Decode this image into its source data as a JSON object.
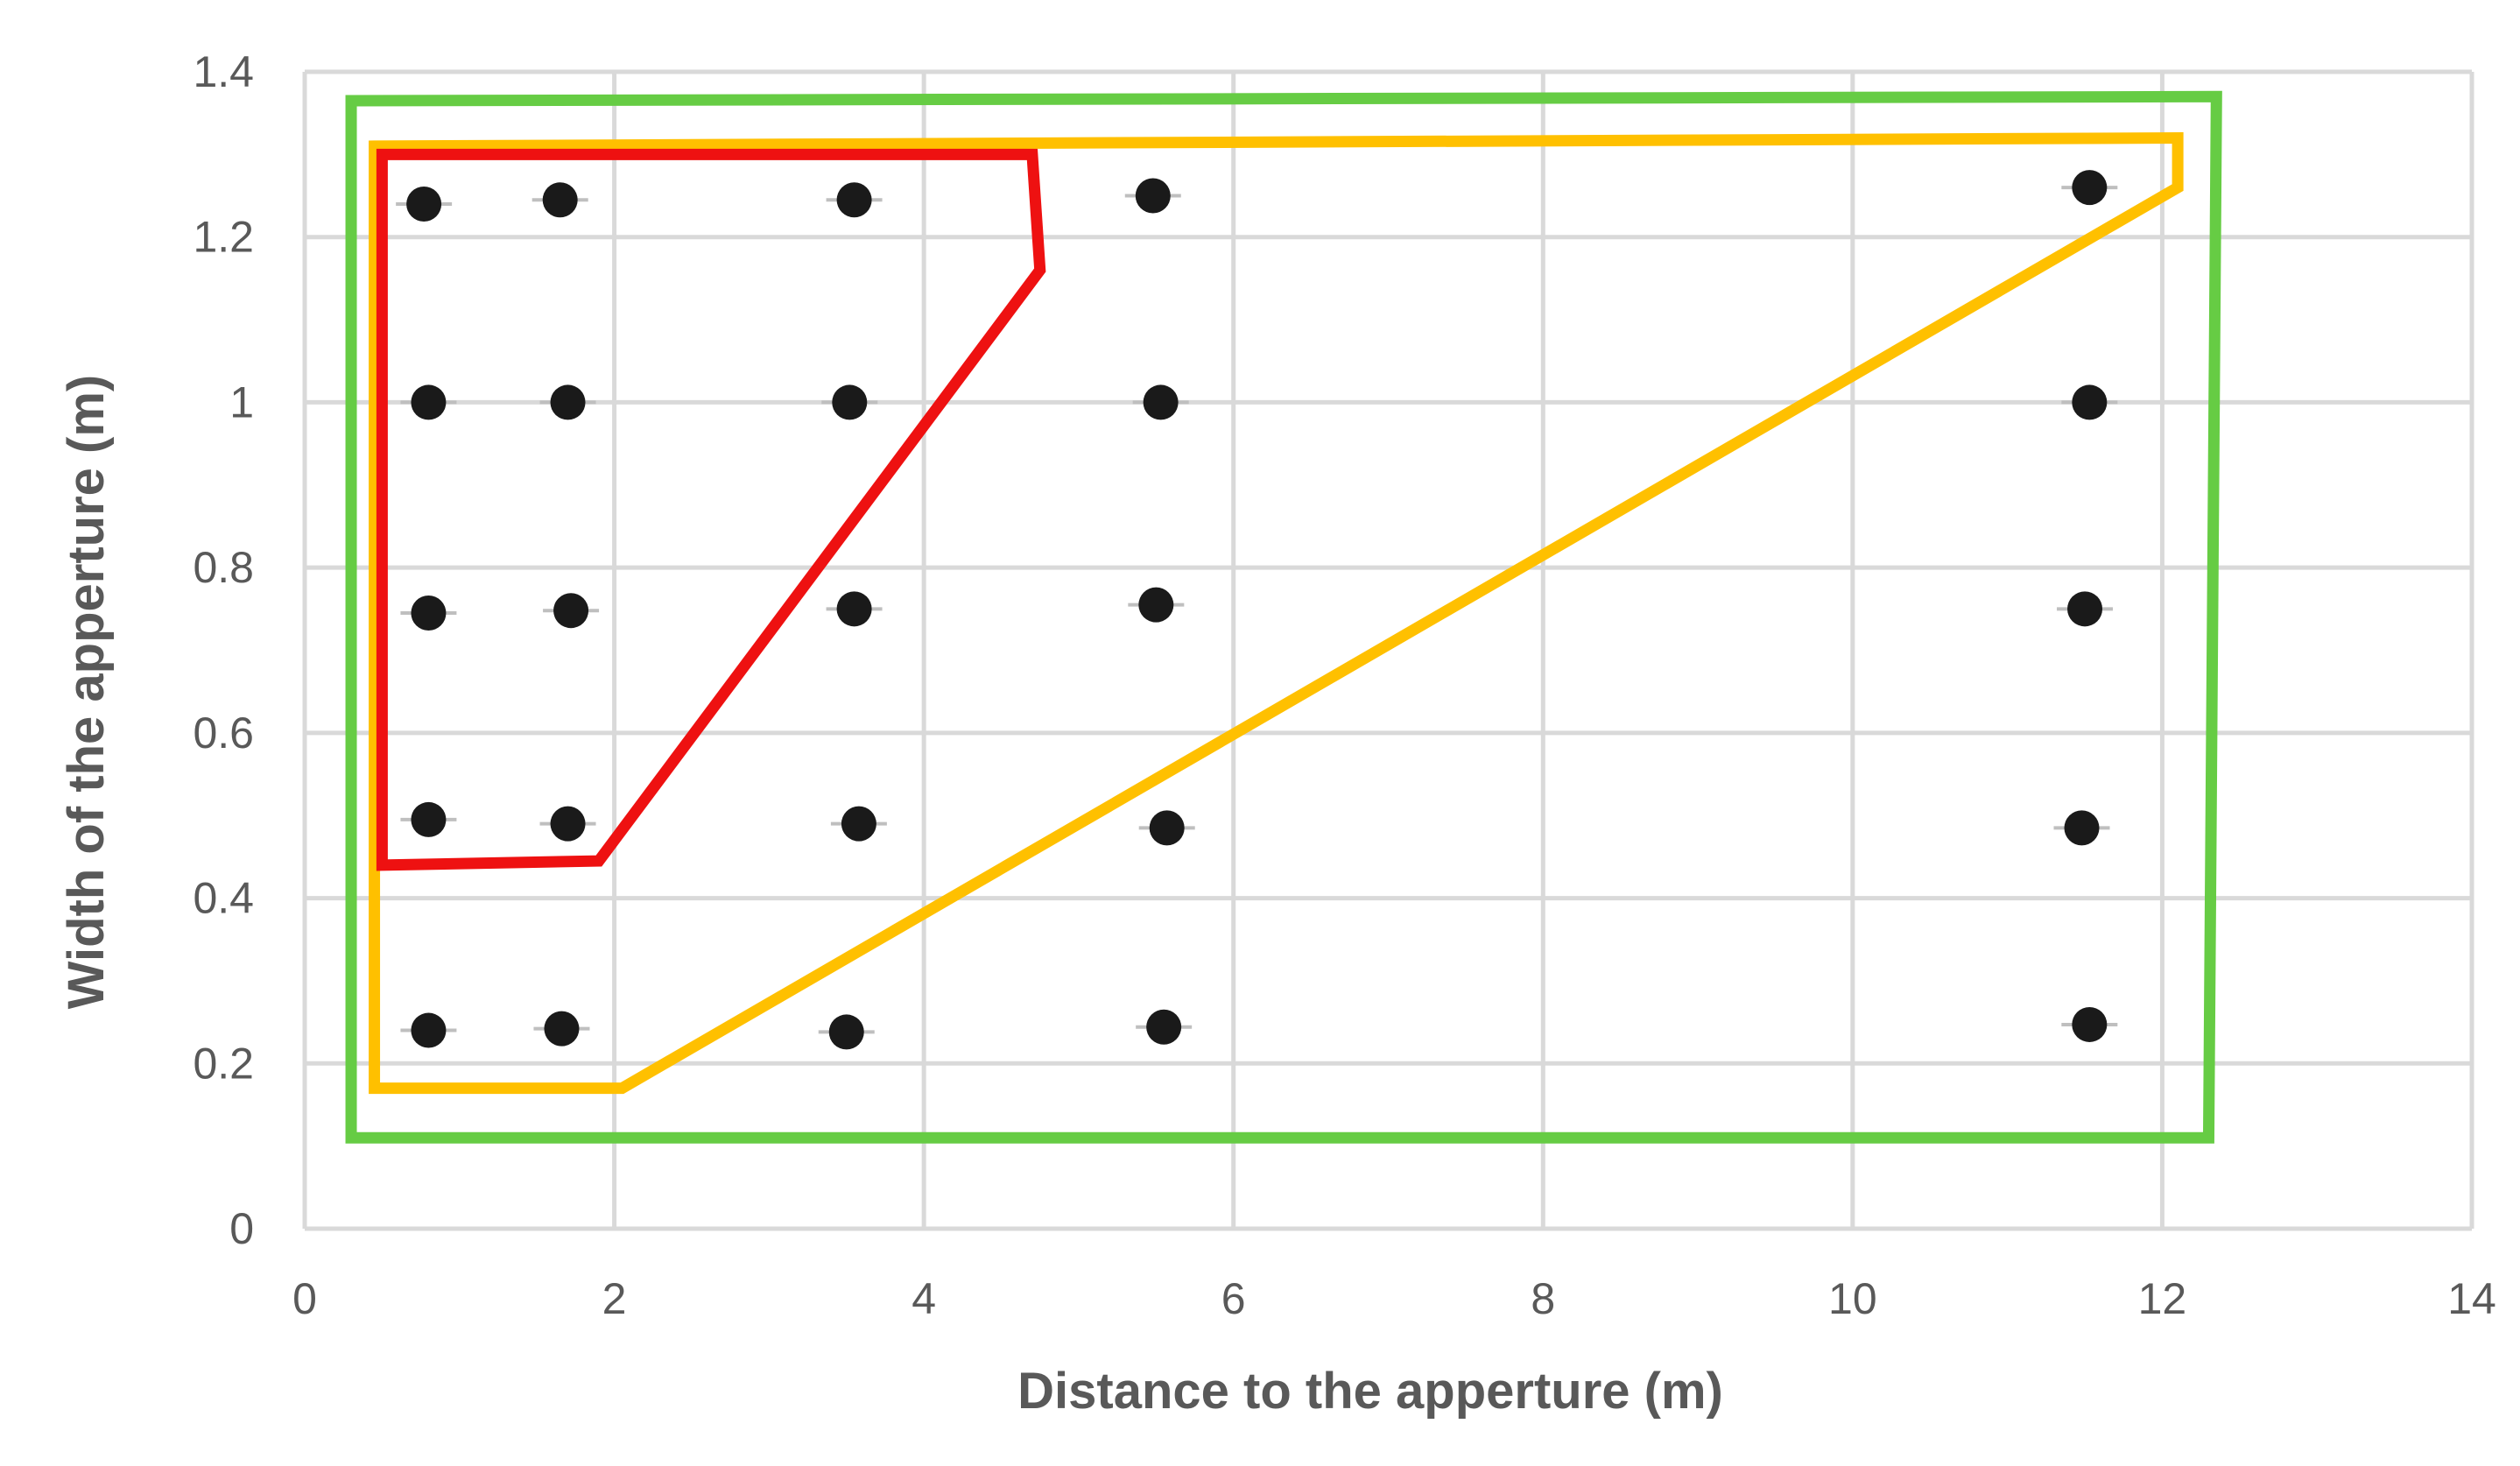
{
  "chart_data": {
    "type": "scatter",
    "title": "",
    "xlabel": "Distance to the apperture (m)",
    "ylabel": "Width of the apperture (m)",
    "xlim": [
      0,
      14
    ],
    "ylim": [
      0,
      1.4
    ],
    "xticks": [
      0,
      2,
      4,
      6,
      8,
      10,
      12,
      14
    ],
    "xtick_labels": [
      "0",
      "2",
      "4",
      "6",
      "8",
      "10",
      "12",
      "14"
    ],
    "yticks": [
      0,
      0.2,
      0.4,
      0.6,
      0.8,
      1,
      1.2,
      1.4
    ],
    "ytick_labels": [
      "0",
      "0.2",
      "0.4",
      "0.6",
      "0.8",
      "1",
      "1.2",
      "1.4"
    ],
    "grid": true,
    "legend": "none",
    "marker_color": "#1a1a1a",
    "points": [
      {
        "x": 0.77,
        "y": 1.24
      },
      {
        "x": 1.65,
        "y": 1.245
      },
      {
        "x": 3.55,
        "y": 1.245
      },
      {
        "x": 5.48,
        "y": 1.25
      },
      {
        "x": 11.53,
        "y": 1.26
      },
      {
        "x": 0.8,
        "y": 1.0
      },
      {
        "x": 1.7,
        "y": 1.0
      },
      {
        "x": 3.52,
        "y": 1.0
      },
      {
        "x": 5.53,
        "y": 1.0
      },
      {
        "x": 11.53,
        "y": 1.0
      },
      {
        "x": 0.8,
        "y": 0.745
      },
      {
        "x": 1.72,
        "y": 0.748
      },
      {
        "x": 3.55,
        "y": 0.75
      },
      {
        "x": 5.5,
        "y": 0.755
      },
      {
        "x": 11.5,
        "y": 0.75
      },
      {
        "x": 0.8,
        "y": 0.495
      },
      {
        "x": 1.7,
        "y": 0.49
      },
      {
        "x": 3.58,
        "y": 0.49
      },
      {
        "x": 5.57,
        "y": 0.485
      },
      {
        "x": 11.48,
        "y": 0.485
      },
      {
        "x": 0.8,
        "y": 0.24
      },
      {
        "x": 1.66,
        "y": 0.242
      },
      {
        "x": 3.5,
        "y": 0.238
      },
      {
        "x": 5.55,
        "y": 0.244
      },
      {
        "x": 11.53,
        "y": 0.247
      }
    ],
    "regions": [
      {
        "color": "#66cc44",
        "vertices": [
          [
            0.3,
            1.365
          ],
          [
            12.35,
            1.37
          ],
          [
            12.3,
            0.11
          ],
          [
            0.3,
            0.11
          ]
        ]
      },
      {
        "color": "#ffc000",
        "vertices": [
          [
            0.45,
            1.31
          ],
          [
            12.1,
            1.32
          ],
          [
            12.1,
            1.26
          ],
          [
            2.05,
            0.17
          ],
          [
            0.45,
            0.17
          ]
        ]
      },
      {
        "color": "#ee1111",
        "vertices": [
          [
            0.5,
            1.3
          ],
          [
            4.7,
            1.3
          ],
          [
            4.75,
            1.16
          ],
          [
            1.9,
            0.445
          ],
          [
            0.5,
            0.44
          ]
        ]
      }
    ]
  }
}
